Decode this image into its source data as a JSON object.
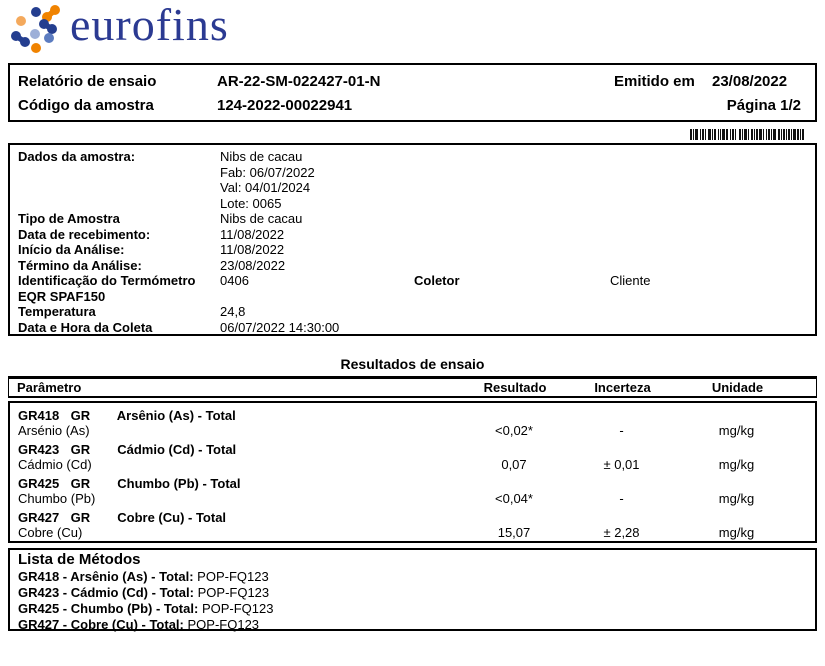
{
  "logo": {
    "brand": "eurofins",
    "colors": {
      "wordmark": "#2b3a92",
      "dark_blue": "#243e8f",
      "mid_blue": "#5c7cc0",
      "light_blue": "#9dafd8",
      "orange": "#f08300",
      "light_orange": "#f4a95c"
    }
  },
  "header": {
    "report_label": "Relatório de ensaio",
    "report_number": "AR-22-SM-022427-01-N",
    "issued_label": "Emitido em",
    "issued_date": "23/08/2022",
    "sample_code_label": "Código da amostra",
    "sample_code": "124-2022-00022941",
    "page_label": "Página 1/2"
  },
  "barcode": {
    "pairs": [
      [
        2,
        1
      ],
      [
        1,
        1
      ],
      [
        3,
        2
      ],
      [
        1,
        1
      ],
      [
        2,
        1
      ],
      [
        1,
        2
      ],
      [
        3,
        1
      ],
      [
        1,
        1
      ],
      [
        2,
        2
      ],
      [
        1,
        1
      ],
      [
        1,
        1
      ],
      [
        3,
        1
      ],
      [
        2,
        2
      ],
      [
        1,
        1
      ],
      [
        2,
        1
      ],
      [
        1,
        3
      ],
      [
        2,
        1
      ],
      [
        1,
        1
      ],
      [
        3,
        1
      ],
      [
        1,
        2
      ],
      [
        2,
        1
      ],
      [
        1,
        1
      ],
      [
        2,
        1
      ],
      [
        3,
        1
      ],
      [
        1,
        2
      ],
      [
        1,
        1
      ],
      [
        2,
        1
      ],
      [
        1,
        1
      ],
      [
        3,
        2
      ],
      [
        2,
        1
      ],
      [
        1,
        1
      ],
      [
        2,
        1
      ],
      [
        1,
        1
      ],
      [
        2,
        1
      ],
      [
        1,
        1
      ],
      [
        3,
        1
      ],
      [
        2,
        1
      ],
      [
        1,
        1
      ],
      [
        2,
        0
      ]
    ]
  },
  "sample": {
    "dados_label": "Dados da amostra:",
    "dados_values": [
      "Nibs de cacau",
      "Fab: 06/07/2022",
      "Val: 04/01/2024",
      "Lote: 0065"
    ],
    "tipo_label": "Tipo de Amostra",
    "tipo_value": "Nibs de cacau",
    "recebimento_label": "Data de recebimento:",
    "recebimento_value": "11/08/2022",
    "inicio_label": "Início da Análise:",
    "inicio_value": "11/08/2022",
    "termino_label": "Término da Análise:",
    "termino_value": "23/08/2022",
    "termometro_label_line1": "Identificação do Termómetro",
    "termometro_label_line2": "EQR SPAF150",
    "termometro_value": "0406",
    "coletor_label": "Coletor",
    "coletor_value": "Cliente",
    "temperatura_label": "Temperatura",
    "temperatura_value": "24,8",
    "coleta_label": "Data e Hora da Coleta",
    "coleta_value": "06/07/2022 14:30:00"
  },
  "results": {
    "section_title": "Resultados de ensaio",
    "columns": [
      "Parâmetro",
      "Resultado",
      "Incerteza",
      "Unidade"
    ],
    "rows": [
      {
        "code": "GR418",
        "group": "GR",
        "name": "Arsênio (As) - Total",
        "sub": "Arsénio (As)",
        "resultado": "<0,02*",
        "incerteza": "-",
        "unidade": "mg/kg"
      },
      {
        "code": "GR423",
        "group": "GR",
        "name": "Cádmio (Cd) - Total",
        "sub": "Cádmio (Cd)",
        "resultado": "0,07",
        "incerteza": "± 0,01",
        "unidade": "mg/kg"
      },
      {
        "code": "GR425",
        "group": "GR",
        "name": "Chumbo (Pb) - Total",
        "sub": "Chumbo (Pb)",
        "resultado": "<0,04*",
        "incerteza": "-",
        "unidade": "mg/kg"
      },
      {
        "code": "GR427",
        "group": "GR",
        "name": "Cobre (Cu) - Total",
        "sub": "Cobre (Cu)",
        "resultado": "15,07",
        "incerteza": "± 2,28",
        "unidade": "mg/kg"
      }
    ]
  },
  "methods": {
    "title": "Lista de Métodos",
    "items": [
      {
        "label": "GR418 - Arsênio (As) - Total:",
        "value": "POP-FQ123"
      },
      {
        "label": "GR423 - Cádmio (Cd) - Total:",
        "value": "POP-FQ123"
      },
      {
        "label": "GR425 - Chumbo (Pb) - Total:",
        "value": "POP-FQ123"
      },
      {
        "label": "GR427 - Cobre (Cu) - Total:",
        "value": "POP-FQ123"
      }
    ]
  }
}
